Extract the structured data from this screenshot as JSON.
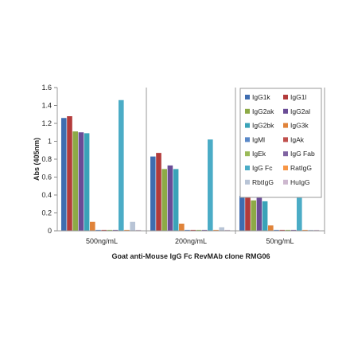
{
  "chart_data": {
    "type": "bar",
    "xlabel": "Goat anti-Mouse IgG Fc RevMAb clone RMG06",
    "ylabel": "Abs (405nm)",
    "ylim": [
      0,
      1.6
    ],
    "yticks": [
      "0",
      "0.2",
      "0.4",
      "0.6",
      "0.8",
      "1",
      "1.2",
      "1.4",
      "1.6"
    ],
    "grid": false,
    "legend_position": "top-right",
    "categories": [
      "500ng/mL",
      "200ng/mL",
      "50ng/mL"
    ],
    "series": [
      {
        "name": "IgG1k",
        "color": "#3f6db0",
        "values": [
          1.26,
          0.83,
          0.39
        ]
      },
      {
        "name": "IgG1l",
        "color": "#b33b3b",
        "values": [
          1.28,
          0.87,
          0.47
        ]
      },
      {
        "name": "IgG2ak",
        "color": "#8daa46",
        "values": [
          1.11,
          0.69,
          0.34
        ]
      },
      {
        "name": "IgG2al",
        "color": "#6a4c96",
        "values": [
          1.1,
          0.73,
          0.38
        ]
      },
      {
        "name": "IgG2bk",
        "color": "#3aa3b8",
        "values": [
          1.09,
          0.69,
          0.33
        ]
      },
      {
        "name": "IgG3k",
        "color": "#e0833a",
        "values": [
          0.1,
          0.08,
          0.06
        ]
      },
      {
        "name": "IgMl",
        "color": "#5a88c8",
        "values": [
          0.01,
          0.01,
          0.01
        ]
      },
      {
        "name": "IgAk",
        "color": "#c0504d",
        "values": [
          0.01,
          0.01,
          0.01
        ]
      },
      {
        "name": "IgEk",
        "color": "#9bbb59",
        "values": [
          0.01,
          0.01,
          0.01
        ]
      },
      {
        "name": "IgG Fab",
        "color": "#8064a2",
        "values": [
          0.01,
          0.01,
          0.01
        ]
      },
      {
        "name": "IgG Fc",
        "color": "#4bacc6",
        "values": [
          1.46,
          1.02,
          0.47
        ]
      },
      {
        "name": "RatIgG",
        "color": "#f79646",
        "values": [
          0.01,
          0.01,
          0.01
        ]
      },
      {
        "name": "RbtIgG",
        "color": "#b8c4d6",
        "values": [
          0.1,
          0.04,
          0.01
        ]
      },
      {
        "name": "HuIgG",
        "color": "#cdb8cf",
        "values": [
          0.01,
          0.01,
          0.01
        ]
      }
    ]
  }
}
